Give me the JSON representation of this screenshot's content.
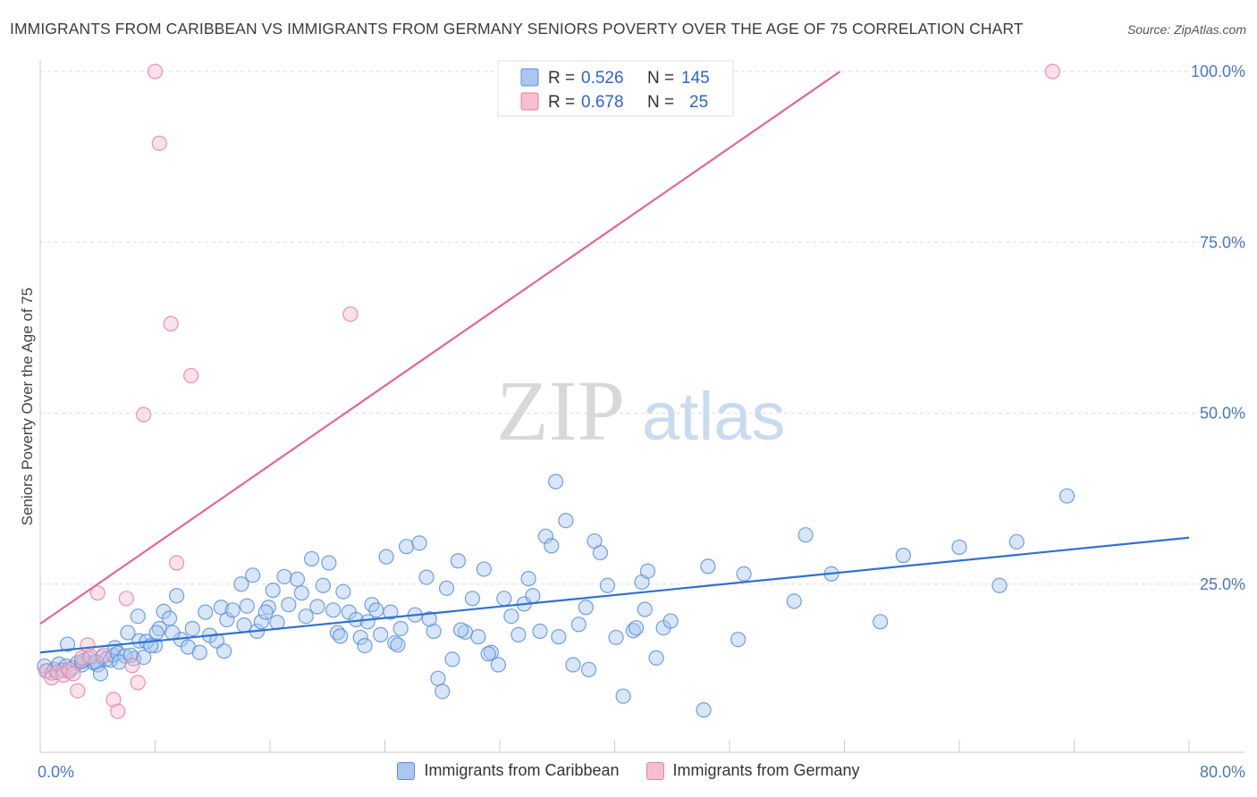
{
  "title": "IMMIGRANTS FROM CARIBBEAN VS IMMIGRANTS FROM GERMANY SENIORS POVERTY OVER THE AGE OF 75 CORRELATION CHART",
  "source": "Source: ZipAtlas.com",
  "watermark": {
    "zip": "ZIP",
    "atlas": "atlas"
  },
  "colors": {
    "blue_fill": "#a9c7f0",
    "blue_stroke": "#5b8fdc",
    "blue_line": "#2f72d0",
    "pink_fill": "#f6bfd0",
    "pink_stroke": "#e77fa0",
    "pink_line": "#e46690",
    "tick_text": "#4a78c4",
    "grid": "#dddddd"
  },
  "legend": [
    {
      "r_label": "R =",
      "r_value": "0.526",
      "n_label": "N =",
      "n_value": "145"
    },
    {
      "r_label": "R =",
      "r_value": "0.678",
      "n_label": "N =",
      "n_value": "25"
    }
  ],
  "chart_data": {
    "type": "scatter",
    "title": "IMMIGRANTS FROM CARIBBEAN VS IMMIGRANTS FROM GERMANY SENIORS POVERTY OVER THE AGE OF 75 CORRELATION CHART",
    "xlabel": "",
    "ylabel": "Seniors Poverty Over the Age of 75",
    "xlim": [
      0,
      80
    ],
    "ylim": [
      0,
      100
    ],
    "x_tick_labels": [
      "0.0%",
      "80.0%"
    ],
    "y_ticks": [
      25,
      50,
      75,
      100
    ],
    "y_tick_labels": [
      "25.0%",
      "50.0%",
      "75.0%",
      "100.0%"
    ],
    "grid": true,
    "series": [
      {
        "name": "Immigrants from Caribbean",
        "color": "#a9c7f0",
        "r": 0.526,
        "n": 145,
        "trend": {
          "x": [
            0,
            80
          ],
          "y": [
            15.0,
            31.8
          ]
        },
        "points": [
          [
            0.3,
            13.0
          ],
          [
            0.5,
            12.3
          ],
          [
            0.8,
            12.0
          ],
          [
            1.0,
            12.5
          ],
          [
            1.3,
            13.3
          ],
          [
            1.6,
            12.4
          ],
          [
            1.8,
            13.0
          ],
          [
            2.0,
            12.2
          ],
          [
            2.3,
            12.8
          ],
          [
            2.6,
            13.5
          ],
          [
            2.9,
            13.2
          ],
          [
            3.1,
            13.9
          ],
          [
            3.4,
            14.1
          ],
          [
            3.7,
            13.5
          ],
          [
            4.0,
            13.2
          ],
          [
            4.3,
            14.3
          ],
          [
            4.6,
            14.0
          ],
          [
            1.9,
            16.2
          ],
          [
            2.9,
            13.7
          ],
          [
            3.9,
            13.6
          ],
          [
            4.2,
            11.9
          ],
          [
            4.9,
            13.9
          ],
          [
            5.1,
            14.6
          ],
          [
            6.5,
            14.1
          ],
          [
            5.2,
            15.7
          ],
          [
            5.4,
            14.9
          ],
          [
            5.9,
            14.5
          ],
          [
            7.2,
            14.3
          ],
          [
            6.9,
            16.7
          ],
          [
            8.0,
            16.0
          ],
          [
            6.1,
            17.9
          ],
          [
            6.8,
            20.3
          ],
          [
            7.4,
            16.6
          ],
          [
            8.3,
            18.5
          ],
          [
            8.6,
            21.0
          ],
          [
            8.1,
            17.9
          ],
          [
            9.0,
            20.0
          ],
          [
            9.5,
            23.3
          ],
          [
            9.8,
            16.9
          ],
          [
            10.3,
            15.8
          ],
          [
            10.6,
            18.5
          ],
          [
            11.1,
            15.0
          ],
          [
            11.5,
            20.9
          ],
          [
            11.8,
            17.5
          ],
          [
            12.3,
            16.7
          ],
          [
            12.6,
            21.6
          ],
          [
            13.0,
            19.8
          ],
          [
            13.4,
            21.2
          ],
          [
            14.0,
            25.0
          ],
          [
            14.4,
            21.8
          ],
          [
            14.8,
            26.3
          ],
          [
            15.1,
            18.1
          ],
          [
            15.4,
            19.5
          ],
          [
            15.9,
            21.6
          ],
          [
            16.2,
            24.1
          ],
          [
            16.5,
            19.4
          ],
          [
            17.0,
            26.1
          ],
          [
            17.3,
            22.0
          ],
          [
            17.9,
            25.7
          ],
          [
            18.5,
            20.3
          ],
          [
            18.9,
            28.7
          ],
          [
            19.3,
            21.7
          ],
          [
            19.7,
            24.8
          ],
          [
            20.1,
            28.1
          ],
          [
            20.4,
            21.2
          ],
          [
            20.7,
            17.9
          ],
          [
            21.1,
            23.9
          ],
          [
            21.5,
            20.9
          ],
          [
            22.0,
            19.8
          ],
          [
            22.3,
            17.2
          ],
          [
            22.6,
            16.0
          ],
          [
            23.1,
            22.0
          ],
          [
            23.4,
            21.2
          ],
          [
            23.7,
            17.6
          ],
          [
            24.1,
            29.0
          ],
          [
            24.4,
            20.9
          ],
          [
            24.7,
            16.4
          ],
          [
            25.1,
            18.5
          ],
          [
            25.5,
            30.5
          ],
          [
            26.1,
            20.5
          ],
          [
            26.4,
            31.0
          ],
          [
            26.9,
            26.0
          ],
          [
            27.4,
            18.1
          ],
          [
            27.7,
            11.2
          ],
          [
            28.0,
            9.3
          ],
          [
            28.3,
            24.4
          ],
          [
            28.7,
            14.0
          ],
          [
            29.1,
            28.4
          ],
          [
            29.6,
            18.0
          ],
          [
            30.1,
            22.9
          ],
          [
            30.5,
            17.3
          ],
          [
            30.9,
            27.2
          ],
          [
            31.4,
            15.0
          ],
          [
            31.9,
            13.2
          ],
          [
            32.3,
            22.9
          ],
          [
            32.8,
            20.3
          ],
          [
            33.3,
            17.6
          ],
          [
            33.7,
            22.1
          ],
          [
            34.0,
            25.8
          ],
          [
            34.3,
            23.3
          ],
          [
            34.8,
            18.1
          ],
          [
            35.2,
            32.0
          ],
          [
            35.6,
            30.6
          ],
          [
            35.9,
            40.0
          ],
          [
            36.1,
            17.3
          ],
          [
            36.6,
            34.3
          ],
          [
            37.1,
            13.2
          ],
          [
            38.0,
            21.6
          ],
          [
            38.2,
            12.5
          ],
          [
            38.6,
            31.3
          ],
          [
            39.0,
            29.6
          ],
          [
            39.5,
            24.8
          ],
          [
            40.1,
            17.2
          ],
          [
            41.3,
            18.2
          ],
          [
            41.5,
            18.6
          ],
          [
            41.9,
            25.3
          ],
          [
            42.3,
            26.9
          ],
          [
            42.9,
            14.2
          ],
          [
            43.4,
            18.6
          ],
          [
            43.9,
            19.6
          ],
          [
            46.5,
            27.6
          ],
          [
            48.6,
            16.9
          ],
          [
            49.0,
            26.5
          ],
          [
            52.5,
            22.5
          ],
          [
            53.3,
            32.2
          ],
          [
            55.1,
            26.5
          ],
          [
            58.5,
            19.5
          ],
          [
            60.1,
            29.2
          ],
          [
            64.0,
            30.4
          ],
          [
            66.8,
            24.8
          ],
          [
            68.0,
            31.2
          ],
          [
            71.5,
            37.9
          ],
          [
            5.5,
            13.6
          ],
          [
            6.3,
            14.6
          ],
          [
            7.7,
            16.0
          ],
          [
            9.2,
            17.9
          ],
          [
            12.8,
            15.2
          ],
          [
            14.2,
            19.0
          ],
          [
            15.7,
            20.9
          ],
          [
            18.2,
            23.7
          ],
          [
            20.9,
            17.4
          ],
          [
            22.8,
            19.5
          ],
          [
            24.9,
            16.1
          ],
          [
            27.1,
            19.9
          ],
          [
            29.3,
            18.3
          ],
          [
            31.2,
            14.8
          ],
          [
            37.5,
            19.1
          ],
          [
            40.6,
            8.6
          ],
          [
            42.1,
            21.3
          ],
          [
            46.2,
            6.6
          ]
        ]
      },
      {
        "name": "Immigrants from Germany",
        "color": "#f6bfd0",
        "r": 0.678,
        "n": 25,
        "trend": {
          "x": [
            0,
            55.7
          ],
          "y": [
            19.2,
            100
          ]
        },
        "points": [
          [
            0.4,
            12.3
          ],
          [
            0.8,
            11.3
          ],
          [
            1.2,
            12.1
          ],
          [
            1.6,
            11.7
          ],
          [
            2.0,
            12.5
          ],
          [
            2.3,
            11.9
          ],
          [
            2.6,
            9.4
          ],
          [
            2.9,
            14.2
          ],
          [
            3.3,
            16.1
          ],
          [
            3.5,
            14.4
          ],
          [
            4.0,
            23.7
          ],
          [
            4.4,
            14.6
          ],
          [
            5.1,
            8.1
          ],
          [
            5.4,
            6.4
          ],
          [
            6.0,
            22.9
          ],
          [
            6.4,
            13.1
          ],
          [
            7.2,
            49.8
          ],
          [
            8.0,
            100
          ],
          [
            8.3,
            89.5
          ],
          [
            9.1,
            63.1
          ],
          [
            9.5,
            28.1
          ],
          [
            10.5,
            55.5
          ],
          [
            21.6,
            64.5
          ],
          [
            70.5,
            100
          ],
          [
            6.8,
            10.6
          ]
        ]
      }
    ]
  },
  "bottom_legend": [
    "Immigrants from Caribbean",
    "Immigrants from Germany"
  ]
}
